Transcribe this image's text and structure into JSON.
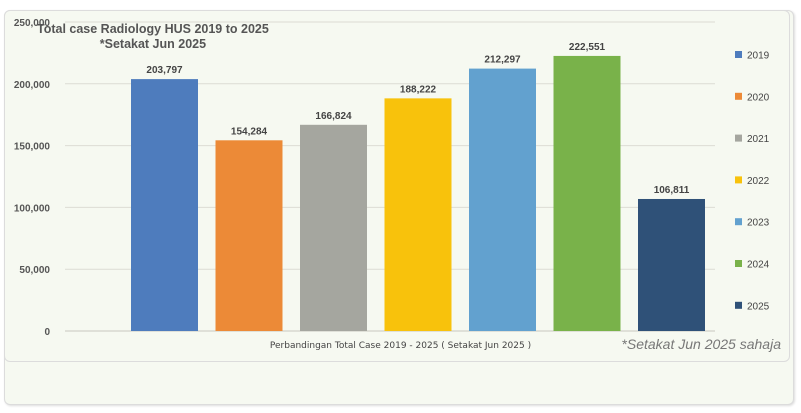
{
  "chart_data": {
    "type": "bar",
    "title": "Total case Radiology HUS 2019 to 2025",
    "subtitle": "*Setakat Jun 2025",
    "xlabel": "Perbandingan Total Case 2019 - 2025 ( Setakat Jun 2025 )",
    "ylabel": "",
    "annotation": "*Setakat Jun 2025 sahaja",
    "categories": [
      "2019",
      "2020",
      "2021",
      "2022",
      "2023",
      "2024",
      "2025"
    ],
    "values": [
      203797,
      154284,
      166824,
      188222,
      212297,
      222551,
      106811
    ],
    "data_labels": [
      "203,797",
      "154,284",
      "166,824",
      "188,222",
      "212,297",
      "222,551",
      "106,811"
    ],
    "colors": [
      "#4e7cbd",
      "#ec8a37",
      "#a5a69f",
      "#f8c20c",
      "#62a1cf",
      "#79b24a",
      "#2f5178"
    ],
    "ylim": [
      0,
      250000
    ],
    "yticks": [
      "0",
      "50,000",
      "100,000",
      "150,000",
      "200,000",
      "250,000"
    ],
    "grid": true,
    "legend": "right"
  }
}
